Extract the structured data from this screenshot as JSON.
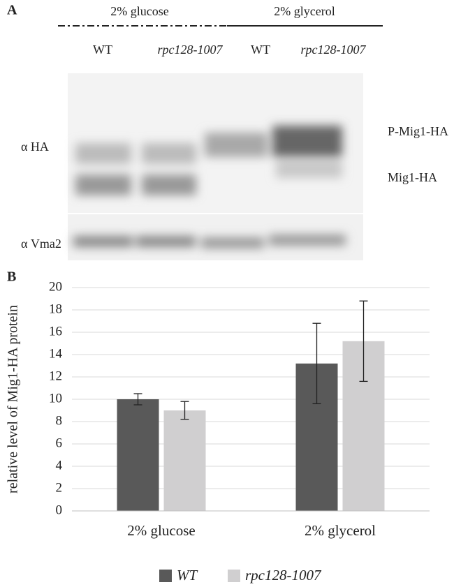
{
  "panel_a": {
    "label": "A",
    "conditions": [
      "2% glucose",
      "2% glycerol"
    ],
    "lanes": [
      "WT",
      "rpc128-1007",
      "WT",
      "rpc128-1007"
    ],
    "blots": [
      "α HA",
      "α Vma2"
    ],
    "bands": [
      "P-Mig1-HA",
      "Mig1-HA"
    ]
  },
  "chart_data": {
    "type": "bar",
    "panel_label": "B",
    "y_label": "relative level of Mig1-HA protein",
    "categories": [
      "2% glucose",
      "2% glycerol"
    ],
    "series": [
      {
        "name": "WT",
        "color": "#595959",
        "values": [
          10.0,
          13.2
        ],
        "errors": [
          0.5,
          3.6
        ]
      },
      {
        "name": "rpc128-1007",
        "color": "#d0cfd0",
        "values": [
          9.0,
          15.2
        ],
        "errors": [
          0.8,
          3.6
        ]
      }
    ],
    "ylim": [
      0,
      20
    ],
    "yticks": [
      0,
      2,
      4,
      6,
      8,
      10,
      12,
      14,
      16,
      18,
      20
    ],
    "grid": true,
    "legend": "bottom"
  }
}
